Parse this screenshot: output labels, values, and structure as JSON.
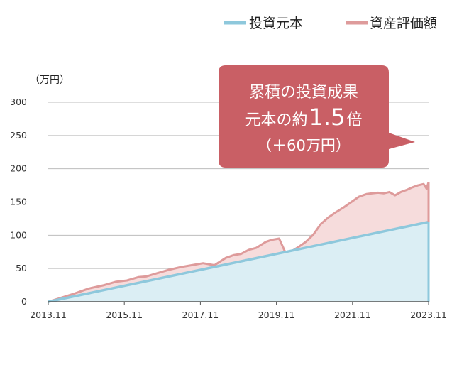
{
  "chart_data": {
    "type": "area",
    "unit_label": "（万円）",
    "ylim": [
      0,
      300
    ],
    "yticks": [
      0,
      50,
      100,
      150,
      200,
      250,
      300
    ],
    "xlim": [
      2013.83,
      2023.83
    ],
    "xticks": [
      {
        "value": 2013.83,
        "label": "2013.11"
      },
      {
        "value": 2015.83,
        "label": "2015.11"
      },
      {
        "value": 2017.83,
        "label": "2017.11"
      },
      {
        "value": 2019.83,
        "label": "2019.11"
      },
      {
        "value": 2021.83,
        "label": "2021.11"
      },
      {
        "value": 2023.83,
        "label": "2023.11"
      }
    ],
    "grid": true,
    "legend_position": "top-right",
    "series": [
      {
        "name": "投資元本",
        "color": "#8ec8dc",
        "fill": "#dbeef4",
        "x": [
          2013.83,
          2023.83
        ],
        "y": [
          0,
          120
        ]
      },
      {
        "name": "資産評価額",
        "color": "#de9b9b",
        "fill": "#f6dcdc",
        "x": [
          2013.83,
          2014.5,
          2014.9,
          2015.3,
          2015.6,
          2015.9,
          2016.2,
          2016.4,
          2016.7,
          2017.0,
          2017.3,
          2017.6,
          2017.9,
          2018.2,
          2018.5,
          2018.7,
          2018.9,
          2019.1,
          2019.3,
          2019.55,
          2019.7,
          2019.9,
          2020.05,
          2020.15,
          2020.2,
          2020.4,
          2020.6,
          2020.8,
          2021.0,
          2021.2,
          2021.4,
          2021.6,
          2021.8,
          2022.0,
          2022.2,
          2022.35,
          2022.5,
          2022.65,
          2022.8,
          2022.95,
          2023.1,
          2023.25,
          2023.4,
          2023.55,
          2023.7,
          2023.78,
          2023.83
        ],
        "y": [
          0,
          12,
          20,
          25,
          30,
          32,
          37,
          38,
          43,
          48,
          52,
          55,
          58,
          55,
          66,
          70,
          72,
          78,
          81,
          90,
          93,
          95,
          76,
          73,
          75,
          82,
          90,
          101,
          117,
          127,
          135,
          142,
          150,
          158,
          162,
          163,
          164,
          163,
          165,
          160,
          165,
          168,
          172,
          175,
          177,
          170,
          180
        ]
      }
    ],
    "annotation": {
      "line1": "累積の投資成果",
      "line2_prefix": "元本の約",
      "line2_value": "1.5",
      "line2_suffix": "倍",
      "line3": "（＋60万円）",
      "box_color": "#c95f65"
    }
  }
}
